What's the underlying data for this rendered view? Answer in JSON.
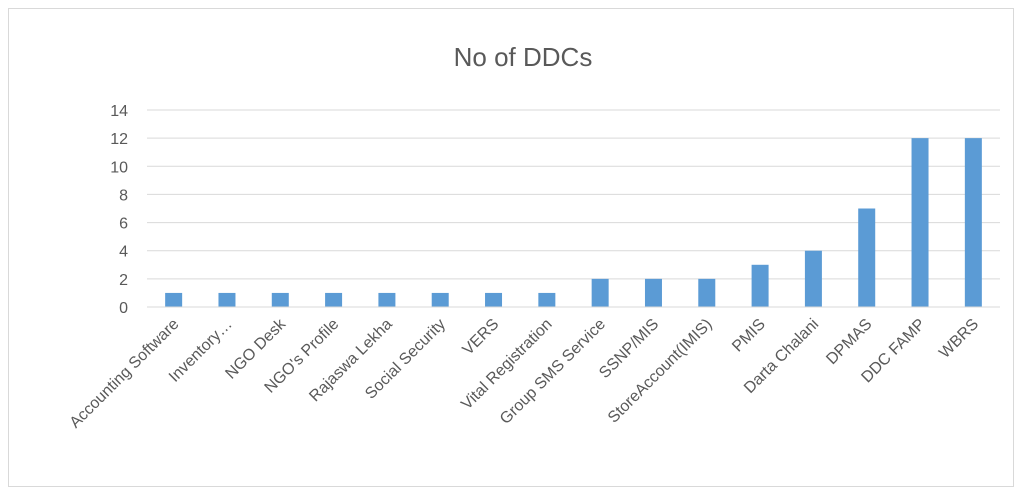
{
  "chart_data": {
    "type": "bar",
    "title": "No of DDCs",
    "xlabel": "",
    "ylabel": "",
    "categories": [
      "Accounting Software",
      "Inventory…",
      "NGO Desk",
      "NGO's Profile",
      "Rajaswa Lekha",
      "Social Security",
      "VERS",
      "Vital Registration",
      "Group SMS Service",
      "SSNP/MIS",
      "StoreAccount(IMIS)",
      "PMIS",
      "Darta Chalani",
      "DPMAS",
      "DDC FAMP",
      "WBRS"
    ],
    "values": [
      1,
      1,
      1,
      1,
      1,
      1,
      1,
      1,
      2,
      2,
      2,
      3,
      4,
      7,
      12,
      12
    ],
    "ylim": [
      0,
      14
    ],
    "yticks": [
      0,
      2,
      4,
      6,
      8,
      10,
      12,
      14
    ],
    "grid": true,
    "legend": "none",
    "bar_color": "#5b9bd5",
    "grid_color": "#d9d9d9"
  }
}
